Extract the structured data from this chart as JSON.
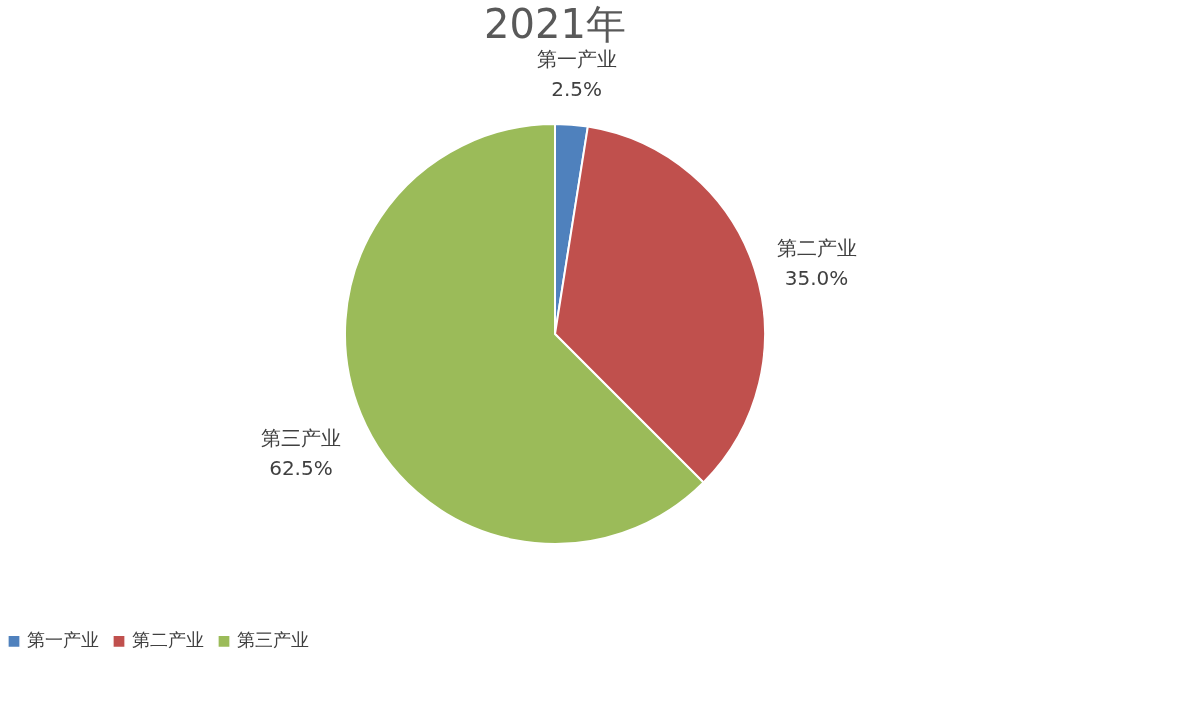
{
  "chart_data": {
    "type": "pie",
    "title": "2021年",
    "categories": [
      "第一产业",
      "第二产业",
      "第三产业"
    ],
    "values": [
      2.5,
      35.0,
      62.5
    ],
    "colors": [
      "#4f81bd",
      "#c0504d",
      "#9bbb59"
    ],
    "value_labels": [
      "2.5%",
      "35.0%",
      "62.5%"
    ],
    "legend": "bottom"
  }
}
